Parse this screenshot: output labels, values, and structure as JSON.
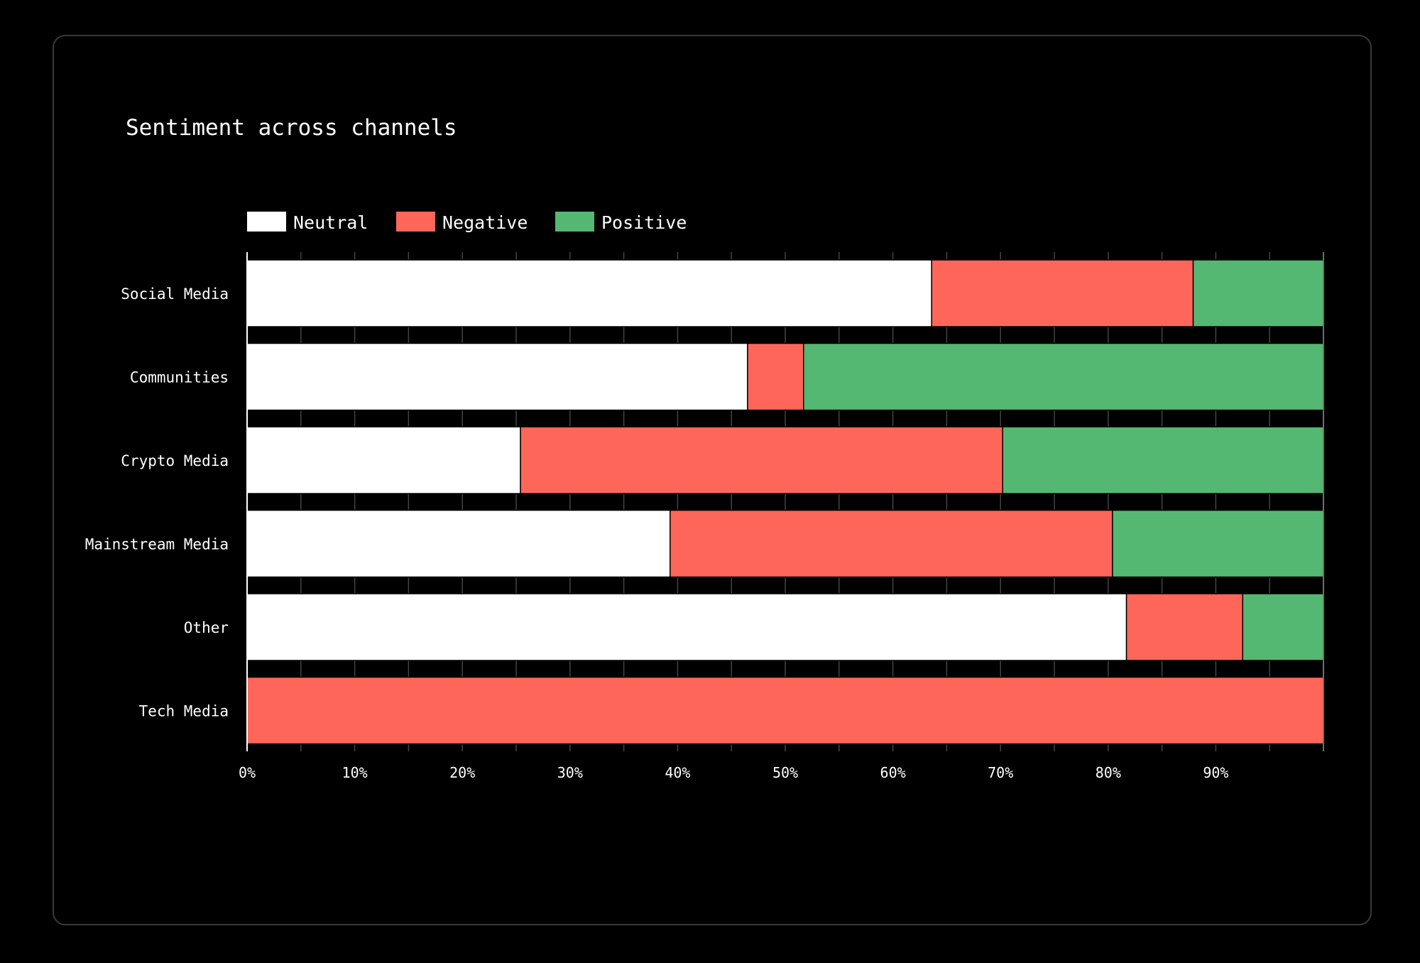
{
  "chart_data": {
    "type": "bar",
    "orientation": "horizontal",
    "stacked": true,
    "normalized": true,
    "title": "Sentiment across channels",
    "categories": [
      "Social Media",
      "Communities",
      "Crypto Media",
      "Mainstream Media",
      "Other",
      "Tech Media"
    ],
    "series": [
      {
        "name": "Neutral",
        "color": "#ffffff",
        "values": [
          63.6,
          46.5,
          25.4,
          39.3,
          81.7,
          0
        ]
      },
      {
        "name": "Negative",
        "color": "#ff665a",
        "values": [
          24.3,
          5.2,
          44.8,
          41.1,
          10.8,
          100
        ]
      },
      {
        "name": "Positive",
        "color": "#55b872",
        "values": [
          12.1,
          48.3,
          29.8,
          19.6,
          7.5,
          0
        ]
      }
    ],
    "xlim": [
      0,
      100
    ],
    "xticks": [
      "0%",
      "10%",
      "20%",
      "30%",
      "40%",
      "50%",
      "60%",
      "70%",
      "80%",
      "90%"
    ],
    "xlabel": "",
    "ylabel": "",
    "grid": true,
    "legend_position": "top-left"
  }
}
